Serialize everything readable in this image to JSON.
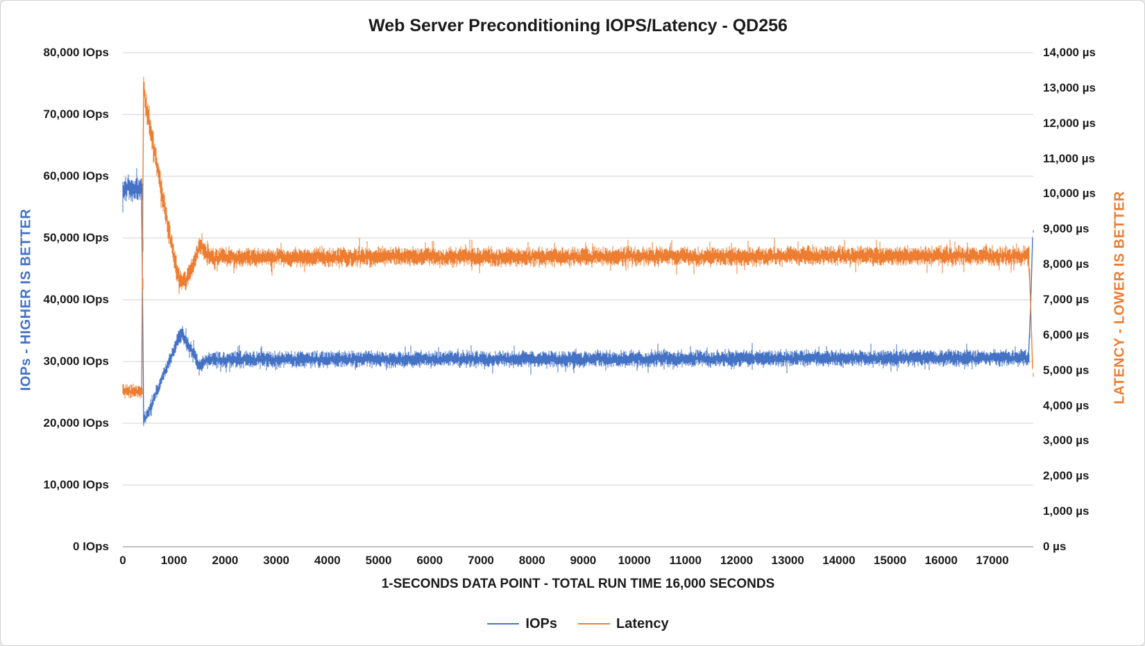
{
  "title": "Web Server Preconditioning IOPS/Latency - QD256",
  "axes": {
    "x": {
      "title": "1-SECONDS DATA POINT - TOTAL RUN TIME 16,000 SECONDS",
      "ticks": [
        "0",
        "1000",
        "2000",
        "3000",
        "4000",
        "5000",
        "6000",
        "7000",
        "8000",
        "9000",
        "10000",
        "11000",
        "12000",
        "13000",
        "14000",
        "15000",
        "16000",
        "17000"
      ]
    },
    "left": {
      "title": "IOPs - HIGHER IS BETTER",
      "color": "#4472C4",
      "ticks": [
        "0 IOps",
        "10,000 IOps",
        "20,000 IOps",
        "30,000 IOps",
        "40,000 IOps",
        "50,000 IOps",
        "60,000 IOps",
        "70,000 IOps",
        "80,000 IOps"
      ]
    },
    "right": {
      "title": "LATENCY - LOWER IS BETTER",
      "color": "#ED7D31",
      "ticks": [
        "0 µs",
        "1,000 µs",
        "2,000 µs",
        "3,000 µs",
        "4,000 µs",
        "5,000 µs",
        "6,000 µs",
        "7,000 µs",
        "8,000 µs",
        "9,000 µs",
        "10,000 µs",
        "11,000 µs",
        "12,000 µs",
        "13,000 µs",
        "14,000 µs"
      ]
    }
  },
  "legend": {
    "items": [
      {
        "label": "IOPs",
        "color": "#4472C4"
      },
      {
        "label": "Latency",
        "color": "#ED7D31"
      }
    ]
  },
  "colors": {
    "gridline": "#D9D9D9",
    "axis_line": "#BFBFBF",
    "background": "#FFFFFF",
    "iops_blue": "#4472C4",
    "latency_orange": "#ED7D31"
  },
  "chart_data": {
    "type": "line",
    "title": "Web Server Preconditioning IOPS/Latency - QD256",
    "xlabel": "1-SECONDS DATA POINT - TOTAL RUN TIME 16,000 SECONDS",
    "ylabel_left": "IOPs - HIGHER IS BETTER",
    "ylabel_right": "LATENCY - LOWER IS BETTER",
    "x_range": [
      0,
      17800
    ],
    "x_tick_step": 1000,
    "y_left_range": [
      0,
      80000
    ],
    "y_left_tick_step": 10000,
    "y_right_range": [
      0,
      14000
    ],
    "y_right_tick_step": 1000,
    "grid": "horizontal",
    "legend_position": "bottom",
    "series": [
      {
        "name": "IOPs",
        "axis": "left",
        "unit": "IOps",
        "color": "#4472C4",
        "noise_amplitude": 1150,
        "keypoints": [
          [
            0,
            58000,
            1.5
          ],
          [
            390,
            58000,
            1.5
          ],
          [
            405,
            20300,
            0.8
          ],
          [
            480,
            21500,
            0.8
          ],
          [
            700,
            25800,
            0.9
          ],
          [
            900,
            29800,
            0.9
          ],
          [
            1050,
            33000,
            1.0
          ],
          [
            1150,
            34800,
            1.0
          ],
          [
            1250,
            33200,
            1.0
          ],
          [
            1480,
            29600,
            1.0
          ],
          [
            1700,
            30300,
            1.0
          ],
          [
            17720,
            30600,
            1.0
          ],
          [
            17790,
            51000,
            0.3
          ]
        ]
      },
      {
        "name": "Latency",
        "axis": "right",
        "unit": "µs",
        "color": "#ED7D31",
        "noise_amplitude": 235,
        "keypoints": [
          [
            0,
            4400,
            0.7
          ],
          [
            390,
            4400,
            0.7
          ],
          [
            400,
            13400,
            1.2
          ],
          [
            430,
            12700,
            1.3
          ],
          [
            600,
            11400,
            1.3
          ],
          [
            800,
            9700,
            1.3
          ],
          [
            1000,
            8200,
            1.2
          ],
          [
            1150,
            7400,
            1.1
          ],
          [
            1300,
            7700,
            1.0
          ],
          [
            1500,
            8550,
            1.0
          ],
          [
            1700,
            8200,
            1.0
          ],
          [
            17720,
            8250,
            1.0
          ],
          [
            17790,
            4900,
            0.3
          ]
        ]
      }
    ]
  }
}
